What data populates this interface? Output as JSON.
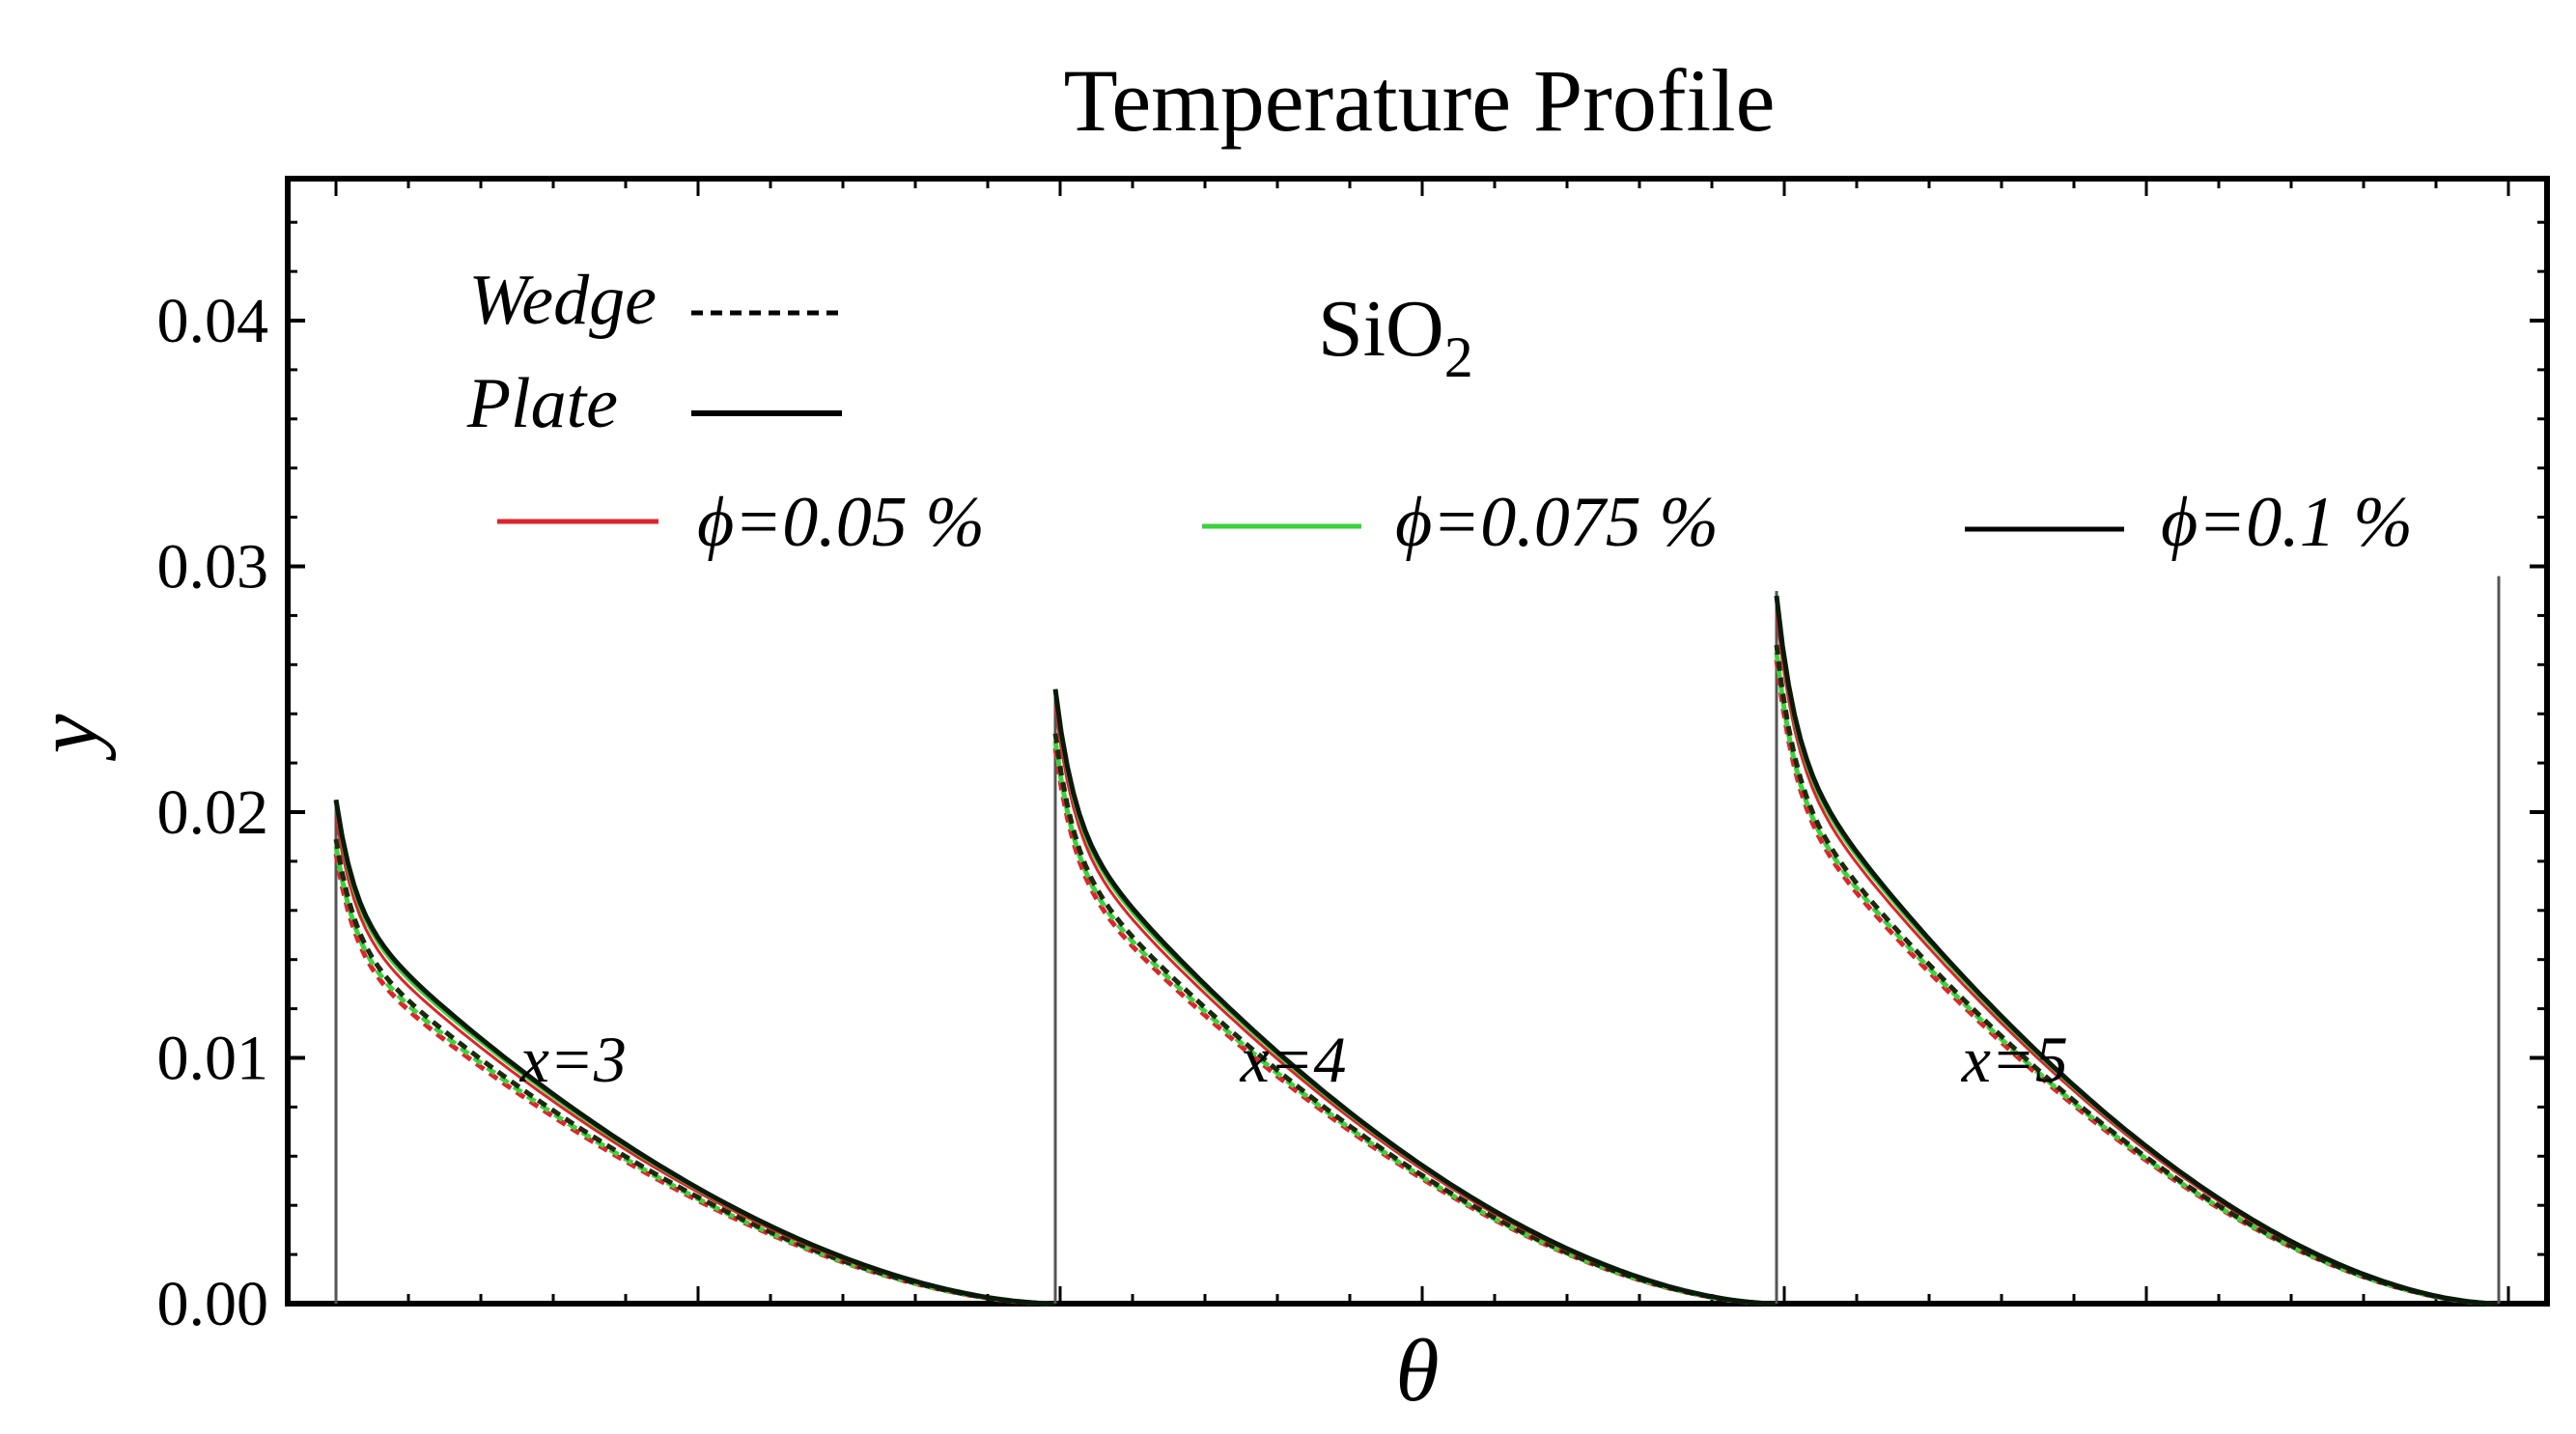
{
  "chart_data": {
    "type": "line",
    "title": "Temperature Profile",
    "xlabel": "θ",
    "ylabel": "y",
    "ylim": [
      0,
      0.046
    ],
    "yticks": [
      "0.00",
      "0.01",
      "0.02",
      "0.03",
      "0.04"
    ],
    "material": {
      "main": "SiO",
      "sub": "2"
    },
    "style_legend": [
      {
        "label": "Wedge",
        "dash": "dashed"
      },
      {
        "label": "Plate",
        "dash": "solid"
      }
    ],
    "phi_legend": [
      {
        "label": "ϕ=0.05 %",
        "color": "#e0232a"
      },
      {
        "label": "ϕ=0.075 %",
        "color": "#3cd23c"
      },
      {
        "label": "ϕ=0.1 %",
        "color": "#000000"
      }
    ],
    "panels": [
      {
        "label": "x=3",
        "x": 3,
        "theta_range": [
          0,
          1
        ],
        "edge_height": 0.0205,
        "plate_series": {
          "phi_0.05": 0.0198,
          "phi_0.075": 0.0202,
          "phi_0.1": 0.0205
        },
        "wedge_series": {
          "phi_0.05": 0.0183,
          "phi_0.075": 0.0186,
          "phi_0.1": 0.0189
        }
      },
      {
        "label": "x=4",
        "x": 4,
        "theta_range": [
          0,
          1
        ],
        "edge_height": 0.025,
        "plate_series": {
          "phi_0.05": 0.0243,
          "phi_0.075": 0.0247,
          "phi_0.1": 0.025
        },
        "wedge_series": {
          "phi_0.05": 0.0226,
          "phi_0.075": 0.0229,
          "phi_0.1": 0.0232
        }
      },
      {
        "label": "x=5",
        "x": 5,
        "theta_range": [
          0,
          1
        ],
        "edge_height": 0.029,
        "plate_series": {
          "phi_0.05": 0.0281,
          "phi_0.075": 0.0285,
          "phi_0.1": 0.0288
        },
        "wedge_series": {
          "phi_0.05": 0.0262,
          "phi_0.075": 0.0265,
          "phi_0.1": 0.0268
        }
      }
    ]
  }
}
